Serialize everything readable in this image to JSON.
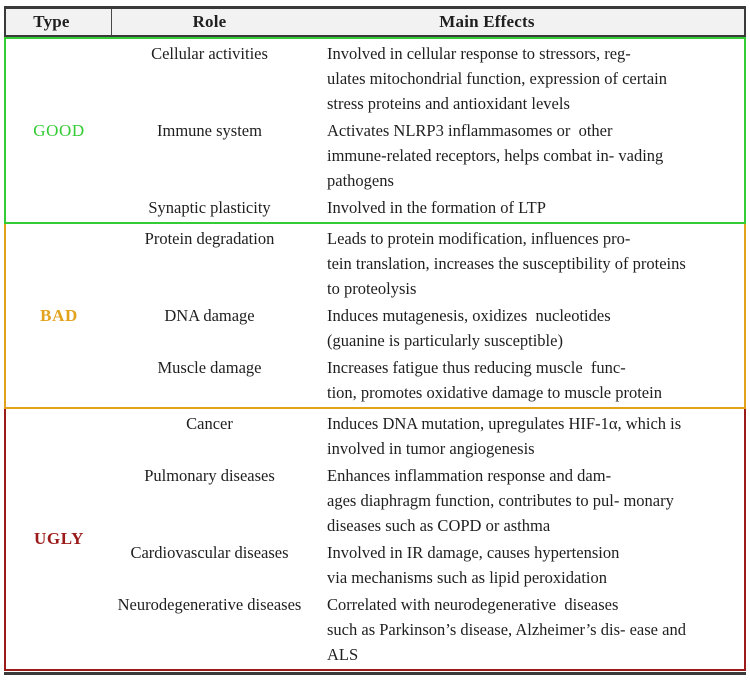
{
  "table": {
    "columns": [
      "Type",
      "Role",
      "Main Effects"
    ],
    "groups": [
      {
        "type": "GOOD",
        "accent_color": "#33cc33",
        "rows": [
          {
            "role": "Cellular activities",
            "effect_lines": [
              "Involved in cellular response to stressors, reg-",
              "ulates mitochondrial function, expression of certain",
              "stress proteins and antioxidant levels"
            ]
          },
          {
            "role": "Immune system",
            "effect_lines": [
              "Activates NLRP3 inflammasomes or  other",
              "immune-related receptors, helps combat in- vading",
              "pathogens"
            ]
          },
          {
            "role": "Synaptic plasticity",
            "effect_lines": [
              "Involved in the formation of LTP"
            ]
          }
        ]
      },
      {
        "type": "BAD",
        "accent_color": "#e3a21b",
        "rows": [
          {
            "role": "Protein degradation",
            "effect_lines": [
              "Leads to protein modification, influences pro-",
              "tein translation, increases the susceptibility of proteins",
              "to proteolysis"
            ]
          },
          {
            "role": "DNA damage",
            "effect_lines": [
              "Induces mutagenesis, oxidizes  nucleotides",
              "(guanine is particularly susceptible)"
            ]
          },
          {
            "role": "Muscle damage",
            "effect_lines": [
              "Increases fatigue thus reducing muscle  func-",
              "tion, promotes oxidative damage to muscle protein"
            ]
          }
        ]
      },
      {
        "type": "UGLY",
        "accent_color": "#9b1a1a",
        "rows": [
          {
            "role": "Cancer",
            "effect_lines": [
              "Induces DNA mutation, upregulates HIF-1α, which is",
              "involved in tumor angiogenesis"
            ]
          },
          {
            "role": "Pulmonary diseases",
            "effect_lines": [
              "Enhances inflammation response and dam-",
              "ages diaphragm function, contributes to pul- monary",
              "diseases such as COPD or asthma"
            ]
          },
          {
            "role": "Cardiovascular diseases",
            "effect_lines": [
              "Involved in IR damage, causes hypertension",
              "via mechanisms such as lipid peroxidation"
            ]
          },
          {
            "role": "Neurodegenerative diseases",
            "effect_lines": [
              "Correlated with neurodegenerative  diseases",
              "such as Parkinson’s disease, Alzheimer’s dis- ease and",
              "ALS"
            ]
          }
        ]
      }
    ]
  }
}
